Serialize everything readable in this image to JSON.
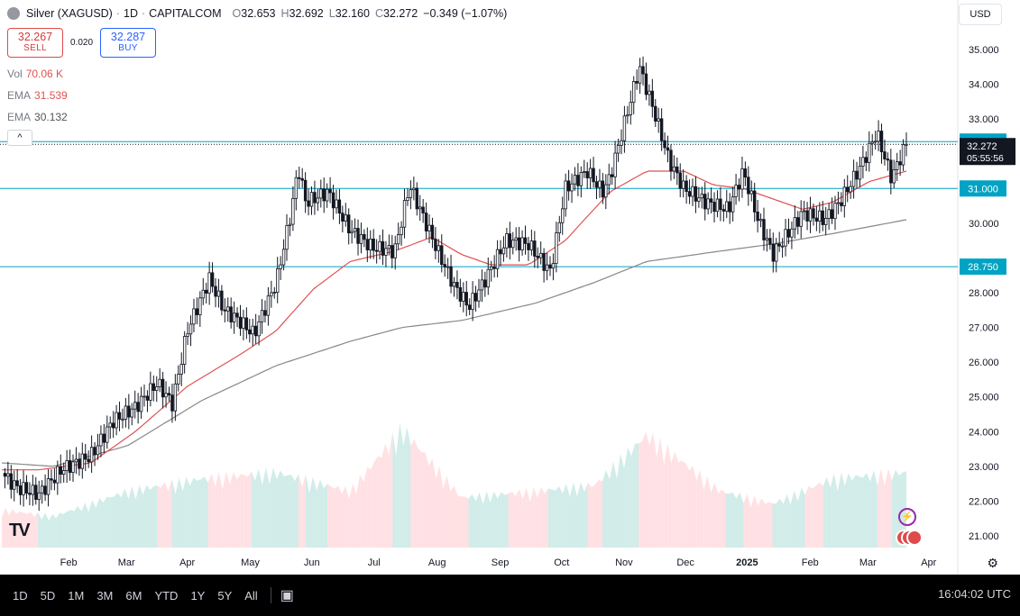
{
  "header": {
    "symbol": "Silver (XAGUSD)",
    "interval": "1D",
    "source": "CAPITALCOM",
    "open_label": "O",
    "open": "32.653",
    "high_label": "H",
    "high": "32.692",
    "low_label": "L",
    "low": "32.160",
    "close_label": "C",
    "close": "32.272",
    "change": "−0.349 (−1.07%)"
  },
  "trade": {
    "sell_price": "32.267",
    "sell_label": "SELL",
    "spread": "0.020",
    "buy_price": "32.287",
    "buy_label": "BUY"
  },
  "indicators": {
    "vol_label": "Vol",
    "vol_value": "70.06 K",
    "ema1_label": "EMA",
    "ema1_value": "31.539",
    "ema2_label": "EMA",
    "ema2_value": "30.132"
  },
  "currency": "USD",
  "timeframes": [
    "1D",
    "5D",
    "1M",
    "3M",
    "6M",
    "YTD",
    "1Y",
    "5Y",
    "All"
  ],
  "clock": "16:04:02 UTC",
  "colors": {
    "up": "#26a69a",
    "down": "#ef5350",
    "candle": "#131722",
    "ema_fast": "#e05252",
    "ema_slow": "#888888",
    "hline": "#00a3c4"
  },
  "chart_data": {
    "type": "candlestick",
    "title": "Silver (XAGUSD) · 1D · CAPITALCOM",
    "y_ticks": [
      "35.000",
      "34.000",
      "33.000",
      "32.000",
      "31.000",
      "30.000",
      "29.000",
      "28.000",
      "27.000",
      "26.000",
      "25.000",
      "24.000",
      "23.000",
      "22.000",
      "21.000"
    ],
    "ylim": [
      21.0,
      35.0
    ],
    "x_ticks": [
      "Feb",
      "Mar",
      "Apr",
      "May",
      "Jun",
      "Jul",
      "Aug",
      "Sep",
      "Oct",
      "Nov",
      "Dec",
      "2025",
      "Feb",
      "Mar",
      "Apr"
    ],
    "horizontal_levels": [
      {
        "label": "32.350",
        "value": 32.35,
        "style": "solid"
      },
      {
        "label": "31.000",
        "value": 31.0,
        "style": "solid"
      },
      {
        "label": "28.750",
        "value": 28.75,
        "style": "solid"
      }
    ],
    "current_price": {
      "label": "32.272",
      "countdown": "05:55:56",
      "value": 32.272
    },
    "price_path": [
      [
        2024.08,
        22.8
      ],
      [
        2024.1,
        22.4
      ],
      [
        2024.13,
        22.2
      ],
      [
        2024.16,
        22.9
      ],
      [
        2024.2,
        23.3
      ],
      [
        2024.23,
        24.3
      ],
      [
        2024.26,
        24.7
      ],
      [
        2024.29,
        25.4
      ],
      [
        2024.31,
        24.8
      ],
      [
        2024.33,
        26.9
      ],
      [
        2024.36,
        28.4
      ],
      [
        2024.38,
        27.5
      ],
      [
        2024.4,
        27.2
      ],
      [
        2024.42,
        26.8
      ],
      [
        2024.45,
        28.3
      ],
      [
        2024.47,
        30.3
      ],
      [
        2024.48,
        31.6
      ],
      [
        2024.49,
        30.6
      ],
      [
        2024.52,
        30.9
      ],
      [
        2024.55,
        29.8
      ],
      [
        2024.58,
        29.3
      ],
      [
        2024.61,
        29.2
      ],
      [
        2024.63,
        31.1
      ],
      [
        2024.65,
        30.1
      ],
      [
        2024.67,
        29.1
      ],
      [
        2024.69,
        28.2
      ],
      [
        2024.71,
        27.6
      ],
      [
        2024.73,
        28.3
      ],
      [
        2024.76,
        29.5
      ],
      [
        2024.79,
        29.4
      ],
      [
        2024.82,
        28.6
      ],
      [
        2024.84,
        31.0
      ],
      [
        2024.87,
        31.5
      ],
      [
        2024.89,
        30.9
      ],
      [
        2024.9,
        31.3
      ],
      [
        2024.93,
        33.7
      ],
      [
        2024.94,
        34.5
      ],
      [
        2024.96,
        33.2
      ],
      [
        2024.98,
        31.8
      ],
      [
        2025.0,
        31.0
      ],
      [
        2025.03,
        30.6
      ],
      [
        2025.06,
        30.4
      ],
      [
        2025.08,
        31.5
      ],
      [
        2025.1,
        30.1
      ],
      [
        2025.12,
        29.1
      ],
      [
        2025.14,
        29.7
      ],
      [
        2025.16,
        30.3
      ],
      [
        2025.19,
        30.1
      ],
      [
        2025.21,
        30.6
      ],
      [
        2025.24,
        31.7
      ],
      [
        2025.26,
        32.6
      ],
      [
        2025.28,
        31.3
      ],
      [
        2025.3,
        32.3
      ]
    ],
    "ema_fast_path": [
      [
        2024.08,
        22.9
      ],
      [
        2024.13,
        22.9
      ],
      [
        2024.2,
        23.1
      ],
      [
        2024.26,
        24.0
      ],
      [
        2024.33,
        25.3
      ],
      [
        2024.4,
        26.2
      ],
      [
        2024.45,
        26.9
      ],
      [
        2024.5,
        28.1
      ],
      [
        2024.55,
        28.9
      ],
      [
        2024.61,
        29.2
      ],
      [
        2024.66,
        29.6
      ],
      [
        2024.7,
        29.1
      ],
      [
        2024.74,
        28.8
      ],
      [
        2024.79,
        28.8
      ],
      [
        2024.84,
        29.5
      ],
      [
        2024.9,
        30.9
      ],
      [
        2024.95,
        31.5
      ],
      [
        2025.0,
        31.5
      ],
      [
        2025.04,
        31.1
      ],
      [
        2025.08,
        31.0
      ],
      [
        2025.12,
        30.7
      ],
      [
        2025.16,
        30.4
      ],
      [
        2025.2,
        30.6
      ],
      [
        2025.25,
        31.2
      ],
      [
        2025.3,
        31.5
      ]
    ],
    "ema_slow_path": [
      [
        2024.08,
        23.1
      ],
      [
        2024.15,
        23.0
      ],
      [
        2024.25,
        23.6
      ],
      [
        2024.35,
        24.9
      ],
      [
        2024.45,
        25.9
      ],
      [
        2024.55,
        26.6
      ],
      [
        2024.62,
        27.0
      ],
      [
        2024.7,
        27.2
      ],
      [
        2024.8,
        27.7
      ],
      [
        2024.88,
        28.3
      ],
      [
        2024.95,
        28.9
      ],
      [
        2025.05,
        29.2
      ],
      [
        2025.12,
        29.4
      ],
      [
        2025.2,
        29.7
      ],
      [
        2025.3,
        30.1
      ]
    ],
    "volume_path": [
      [
        2024.08,
        0.3
      ],
      [
        2024.15,
        0.25
      ],
      [
        2024.25,
        0.45
      ],
      [
        2024.35,
        0.55
      ],
      [
        2024.45,
        0.6
      ],
      [
        2024.55,
        0.45
      ],
      [
        2024.62,
        0.95
      ],
      [
        2024.7,
        0.4
      ],
      [
        2024.8,
        0.45
      ],
      [
        2024.88,
        0.5
      ],
      [
        2024.95,
        0.9
      ],
      [
        2025.05,
        0.45
      ],
      [
        2025.12,
        0.35
      ],
      [
        2025.2,
        0.55
      ],
      [
        2025.3,
        0.6
      ]
    ]
  }
}
